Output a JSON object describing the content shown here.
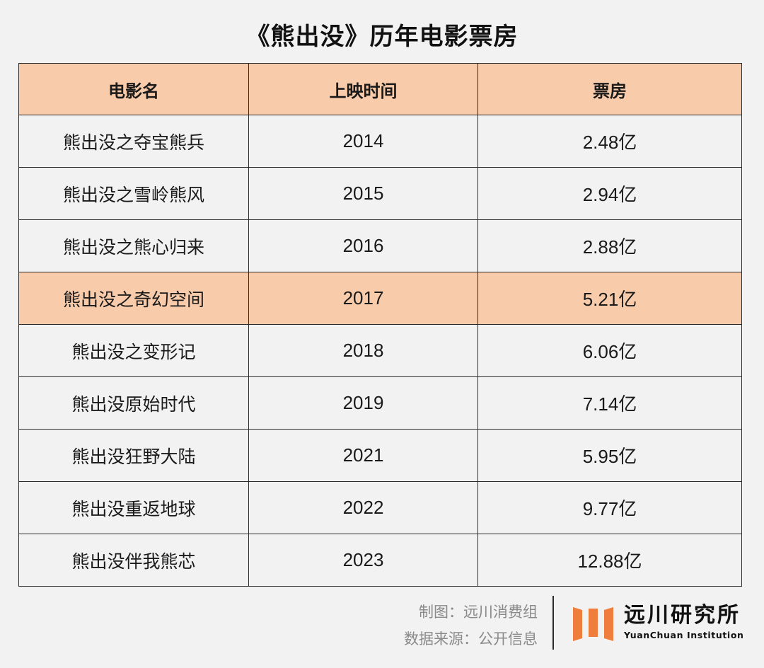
{
  "title": "《熊出没》历年电影票房",
  "table": {
    "columns": [
      "电影名",
      "上映时间",
      "票房"
    ],
    "rows": [
      {
        "name": "熊出没之夺宝熊兵",
        "year": "2014",
        "box_office": "2.48亿",
        "highlighted": false
      },
      {
        "name": "熊出没之雪岭熊风",
        "year": "2015",
        "box_office": "2.94亿",
        "highlighted": false
      },
      {
        "name": "熊出没之熊心归来",
        "year": "2016",
        "box_office": "2.88亿",
        "highlighted": false
      },
      {
        "name": "熊出没之奇幻空间",
        "year": "2017",
        "box_office": "5.21亿",
        "highlighted": true
      },
      {
        "name": "熊出没之变形记",
        "year": "2018",
        "box_office": "6.06亿",
        "highlighted": false
      },
      {
        "name": "熊出没原始时代",
        "year": "2019",
        "box_office": "7.14亿",
        "highlighted": false
      },
      {
        "name": "熊出没狂野大陆",
        "year": "2021",
        "box_office": "5.95亿",
        "highlighted": false
      },
      {
        "name": "熊出没重返地球",
        "year": "2022",
        "box_office": "9.77亿",
        "highlighted": false
      },
      {
        "name": "熊出没伴我熊芯",
        "year": "2023",
        "box_office": "12.88亿",
        "highlighted": false
      }
    ]
  },
  "footer": {
    "maker": "制图：远川消费组",
    "source": "数据来源：公开信息",
    "logo_cn": "远川研究所",
    "logo_en": "YuanChuan Institution"
  },
  "colors": {
    "header_bg": "#f8cbab",
    "highlight_bg": "#f8cbab",
    "row_bg": "#f2f2f2",
    "logo_accent": "#ef7d3c"
  }
}
